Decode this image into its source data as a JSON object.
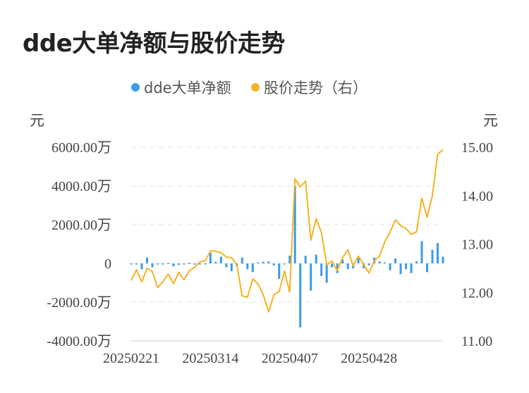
{
  "chart_data": {
    "type": "bar+line",
    "title": "dde大单净额与股价走势",
    "y_left_unit": "元",
    "y_right_unit": "元",
    "y_left_ticks": [
      "6000.00万",
      "4000.00万",
      "2000.00万",
      "0",
      "-2000.00万",
      "-4000.00万"
    ],
    "y_left_range_wan": [
      -4000,
      6000
    ],
    "y_right_ticks": [
      "15.00",
      "14.00",
      "13.00",
      "12.00",
      "11.00"
    ],
    "y_right_range": [
      11.0,
      15.0
    ],
    "x_tick_labels": [
      "20250221",
      "20250314",
      "20250407",
      "20250428"
    ],
    "x_tick_indices": [
      0,
      15,
      30,
      45
    ],
    "legend_position": "top-center",
    "grid": "horizontal-dashed",
    "colors": {
      "bar": "#3a9be8",
      "line": "#f5b324"
    },
    "series": [
      {
        "name": "dde大单净额",
        "kind": "bar",
        "axis": "left",
        "values_wan": [
          -40,
          -30,
          -300,
          300,
          -200,
          -50,
          -20,
          30,
          -150,
          -80,
          -30,
          30,
          -60,
          -40,
          -30,
          550,
          80,
          350,
          -200,
          -400,
          -150,
          300,
          -300,
          -450,
          50,
          80,
          100,
          -100,
          -800,
          -50,
          400,
          4000,
          -3300,
          400,
          -1400,
          450,
          -650,
          -1000,
          -200,
          -500,
          200,
          -300,
          -250,
          300,
          -250,
          -100,
          300,
          100,
          50,
          -350,
          250,
          -550,
          -300,
          -500,
          100,
          1150,
          -450,
          700,
          1050,
          350
        ]
      },
      {
        "name": "股价走势（右）",
        "kind": "line",
        "axis": "right",
        "values": [
          12.25,
          12.47,
          12.22,
          12.5,
          12.43,
          12.1,
          12.22,
          12.38,
          12.18,
          12.42,
          12.26,
          12.45,
          12.52,
          12.63,
          12.65,
          12.86,
          12.85,
          12.82,
          12.73,
          12.72,
          12.57,
          11.93,
          11.9,
          12.28,
          12.18,
          11.95,
          11.6,
          11.95,
          12.02,
          12.44,
          12.01,
          14.35,
          14.18,
          14.3,
          13.08,
          13.52,
          13.24,
          12.57,
          12.65,
          12.45,
          12.72,
          12.88,
          12.55,
          12.75,
          12.58,
          12.4,
          12.65,
          12.75,
          13.05,
          13.25,
          13.5,
          13.38,
          13.32,
          13.2,
          13.25,
          13.95,
          13.55,
          14.0,
          14.85,
          14.95
        ]
      }
    ]
  }
}
